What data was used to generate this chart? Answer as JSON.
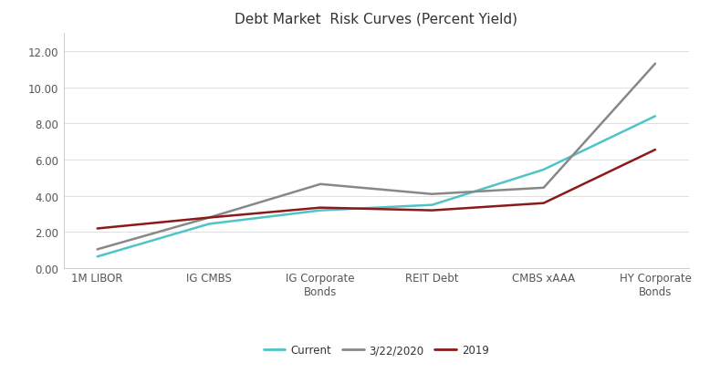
{
  "title": "Debt Market  Risk Curves (Percent Yield)",
  "categories": [
    "1M LIBOR",
    "IG CMBS",
    "IG Corporate\nBonds",
    "REIT Debt",
    "CMBS xAAA",
    "HY Corporate\nBonds"
  ],
  "series": {
    "Current": {
      "values": [
        0.65,
        2.45,
        3.2,
        3.5,
        5.45,
        8.4
      ],
      "color": "#4FC3C8",
      "linewidth": 1.8
    },
    "3/22/2020": {
      "values": [
        1.05,
        2.8,
        4.65,
        4.1,
        4.45,
        11.3
      ],
      "color": "#888888",
      "linewidth": 1.8
    },
    "2019": {
      "values": [
        2.2,
        2.8,
        3.35,
        3.2,
        3.6,
        6.55
      ],
      "color": "#8B1A1A",
      "linewidth": 1.8
    }
  },
  "ylim": [
    0,
    13.0
  ],
  "yticks": [
    0.0,
    2.0,
    4.0,
    6.0,
    8.0,
    10.0,
    12.0
  ],
  "legend_order": [
    "Current",
    "3/22/2020",
    "2019"
  ],
  "background_color": "#ffffff",
  "title_fontsize": 11,
  "tick_fontsize": 8.5,
  "legend_fontsize": 8.5
}
